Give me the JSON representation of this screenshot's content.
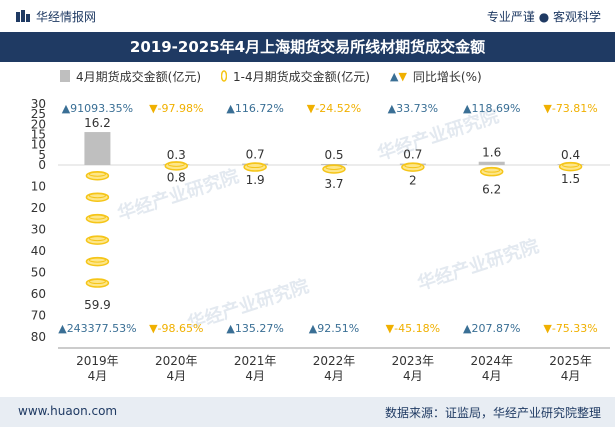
{
  "header": {
    "brand": "华经情报网",
    "tagline": "专业严谨 ● 客观科学",
    "title": "2019-2025年4月上海期货交易所线材期货成交金额"
  },
  "legend": {
    "bar_label": "4月期货成交金额(亿元)",
    "coin_label": "1-4月期货成交金额(亿元)",
    "growth_label": "同比增长(%)"
  },
  "footer": {
    "website": "www.huaon.com",
    "source": "数据来源：证监局，华经产业研究院整理"
  },
  "watermark": "华经产业研究院",
  "colors": {
    "bar": "#bfbfbf",
    "coin": "#f5c518",
    "up": "#3a6f95",
    "down": "#f0b000",
    "title_bg": "#1f3a63",
    "footer_bg": "#e8edf3"
  },
  "chart_data": {
    "type": "bar",
    "categories": [
      "2019年\n4月",
      "2020年\n4月",
      "2021年\n4月",
      "2022年\n4月",
      "2023年\n4月",
      "2024年\n4月",
      "2025年\n4月"
    ],
    "series": [
      {
        "name": "4月期货成交金额(亿元)",
        "values": [
          16.2,
          0.3,
          0.7,
          0.5,
          0.7,
          1.6,
          0.4
        ]
      },
      {
        "name": "1-4月期货成交金额(亿元)",
        "values": [
          59.9,
          0.8,
          1.9,
          3.7,
          2,
          6.2,
          1.5
        ]
      }
    ],
    "growth_monthly": [
      "91093.35%",
      "-97.98%",
      "116.72%",
      "-24.52%",
      "33.73%",
      "118.69%",
      "-73.81%"
    ],
    "growth_cumulative": [
      "243377.53%",
      "-98.65%",
      "135.27%",
      "92.51%",
      "-45.18%",
      "207.87%",
      "-75.33%"
    ],
    "upper_axis": {
      "ticks": [
        30,
        25,
        20,
        15,
        10,
        5,
        0
      ]
    },
    "lower_axis": {
      "ticks": [
        0,
        10,
        20,
        30,
        40,
        50,
        60,
        70,
        80
      ]
    },
    "ylim_upper": [
      0,
      30
    ],
    "ylim_lower": [
      0,
      80
    ]
  }
}
